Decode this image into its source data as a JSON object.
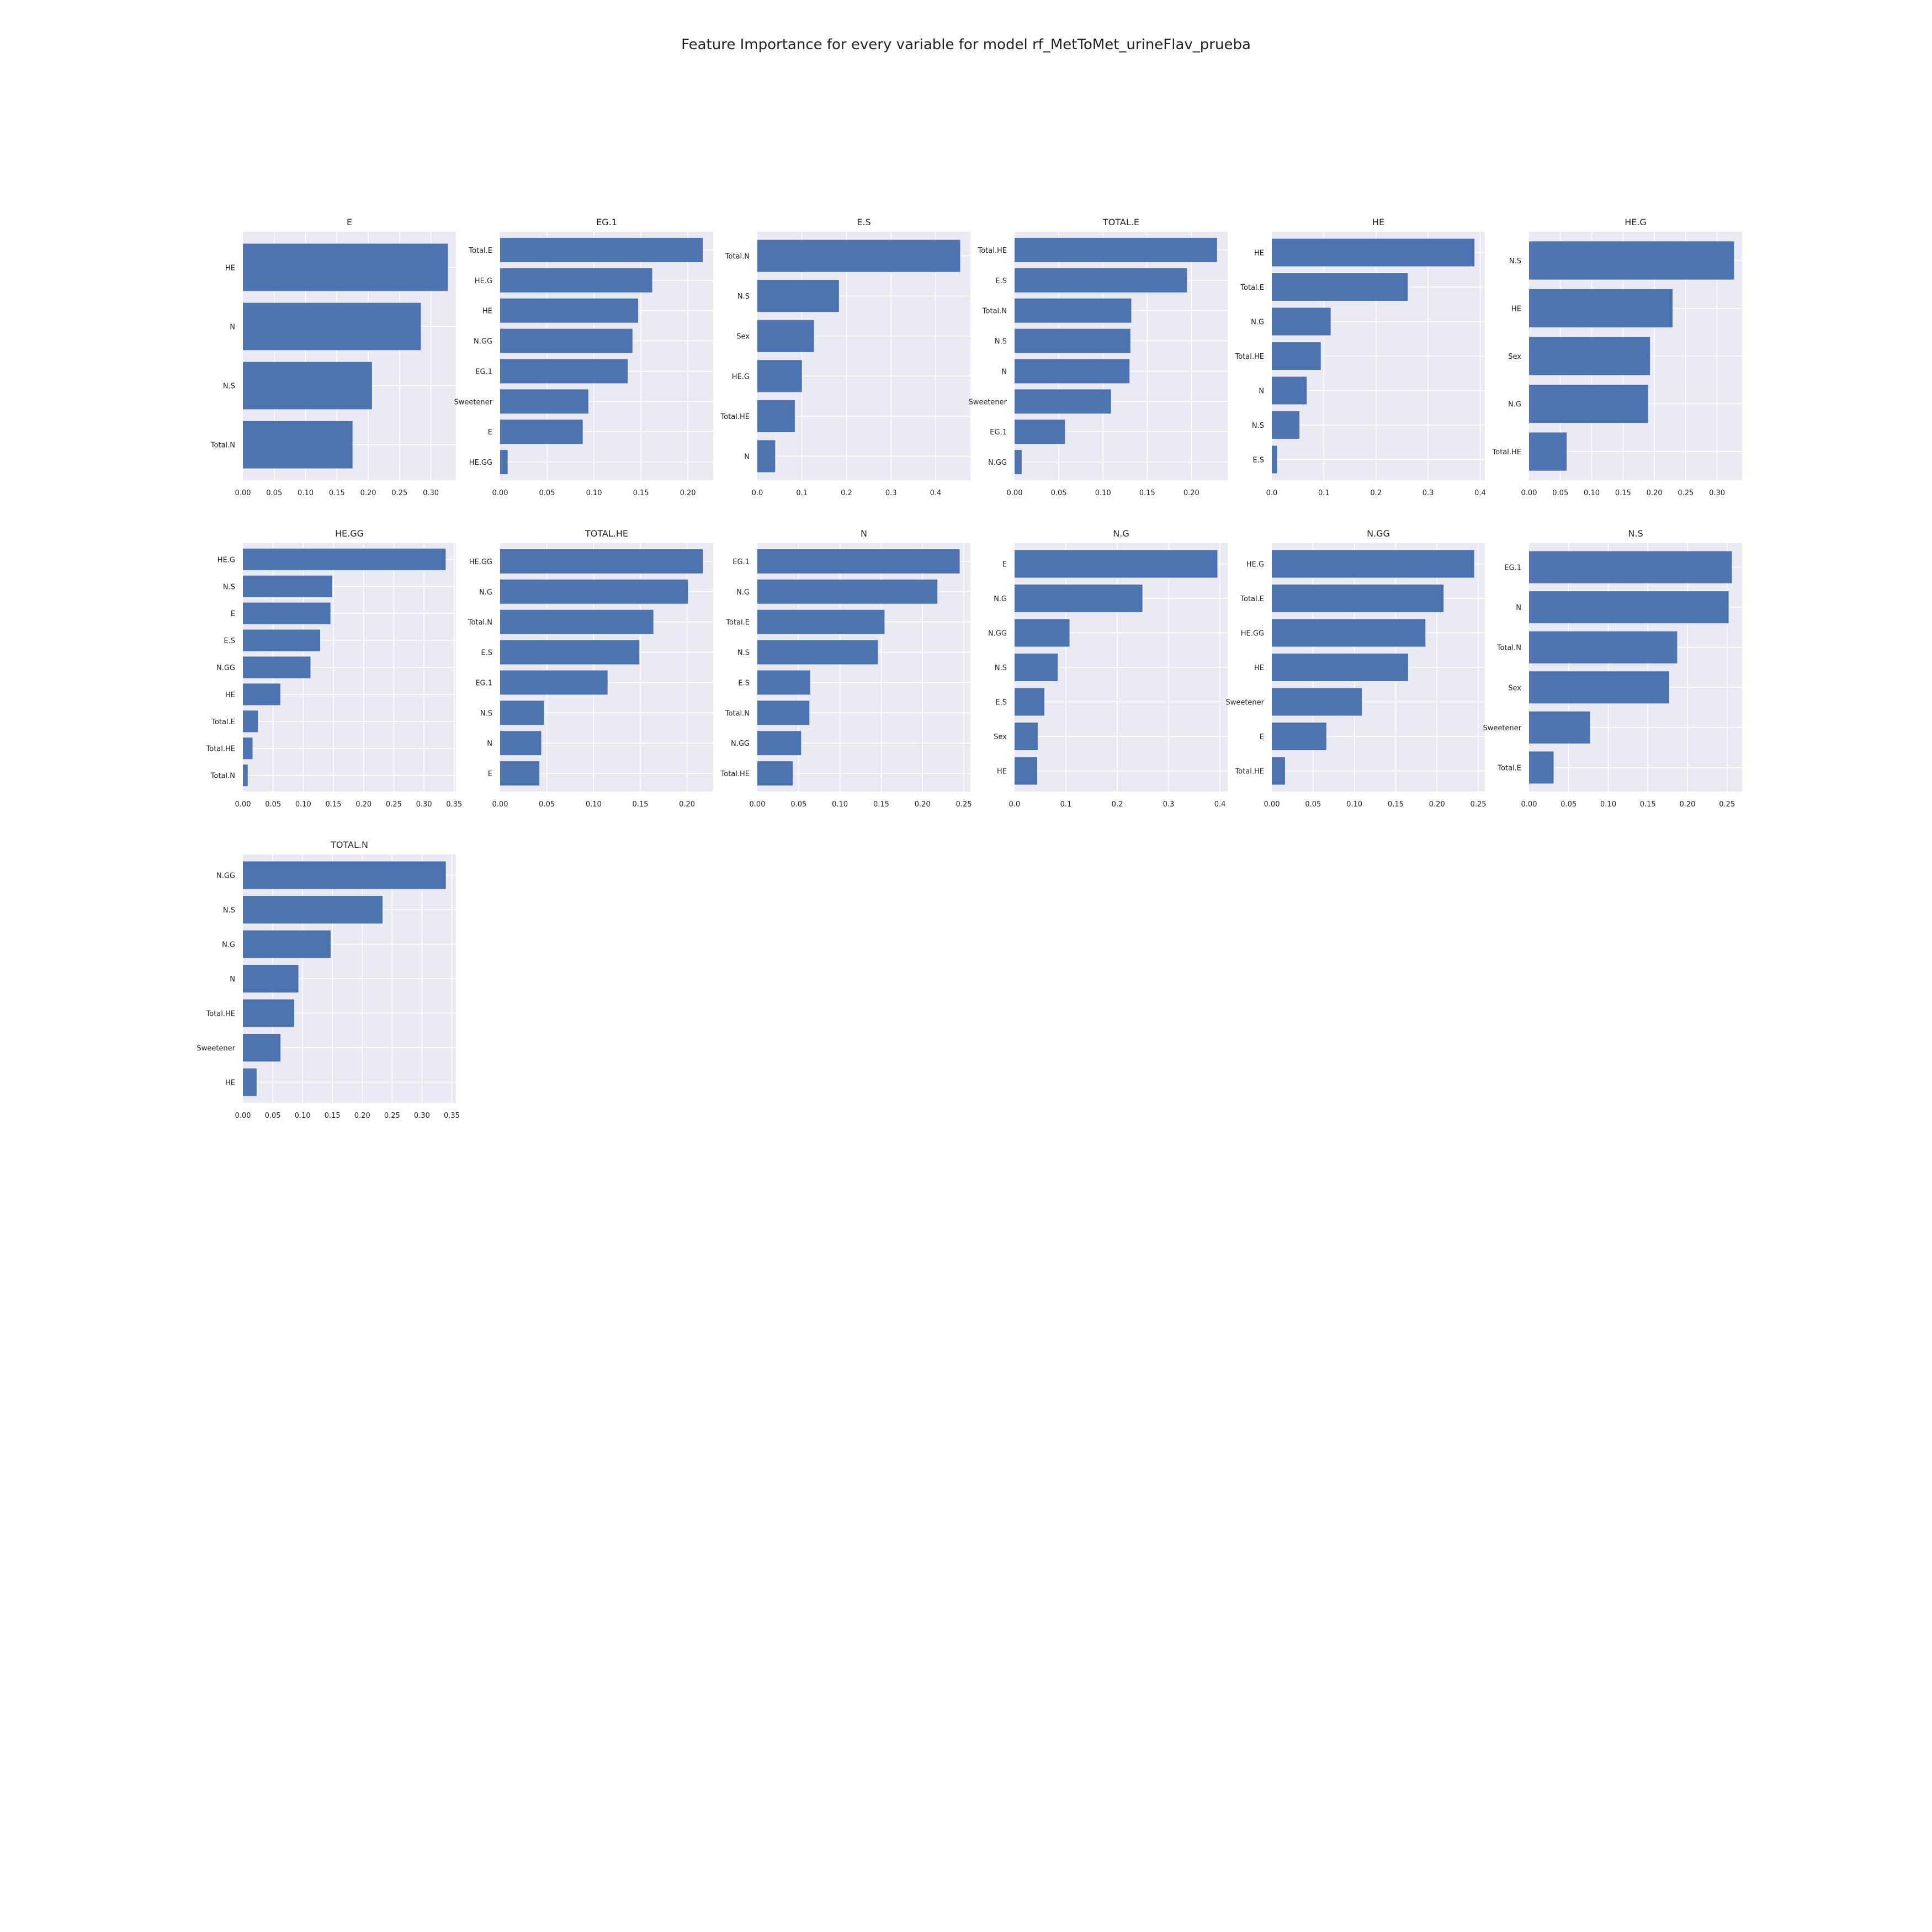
{
  "figure": {
    "title": "Feature Importance for every variable for model rf_MetToMet_urineFlav_prueba",
    "bar_color": "#4c72b0",
    "background_color": "#eaeaf2",
    "grid_color": "#ffffff"
  },
  "chart_data": [
    {
      "type": "bar",
      "orientation": "horizontal",
      "title": "E",
      "grid": true,
      "categories": [
        "HE",
        "N",
        "N.S",
        "Total.N"
      ],
      "values": [
        0.327,
        0.284,
        0.206,
        0.175
      ],
      "xlim": [
        0,
        0.34
      ],
      "xticks": [
        "0.00",
        "0.05",
        "0.10",
        "0.15",
        "0.20",
        "0.25",
        "0.30"
      ]
    },
    {
      "type": "bar",
      "orientation": "horizontal",
      "title": "EG.1",
      "grid": true,
      "categories": [
        "Total.E",
        "HE.G",
        "HE",
        "N.GG",
        "EG.1",
        "Sweetener",
        "E",
        "HE.GG"
      ],
      "values": [
        0.216,
        0.162,
        0.147,
        0.141,
        0.136,
        0.094,
        0.088,
        0.008
      ],
      "xlim": [
        0,
        0.227
      ],
      "xticks": [
        "0.00",
        "0.05",
        "0.10",
        "0.15",
        "0.20"
      ]
    },
    {
      "type": "bar",
      "orientation": "horizontal",
      "title": "E.S",
      "grid": true,
      "categories": [
        "Total.N",
        "N.S",
        "Sex",
        "HE.G",
        "Total.HE",
        "N"
      ],
      "values": [
        0.455,
        0.183,
        0.127,
        0.1,
        0.084,
        0.04
      ],
      "xlim": [
        0,
        0.478
      ],
      "xticks": [
        "0.0",
        "0.1",
        "0.2",
        "0.3",
        "0.4"
      ]
    },
    {
      "type": "bar",
      "orientation": "horizontal",
      "title": "TOTAL.E",
      "grid": true,
      "categories": [
        "Total.HE",
        "E.S",
        "Total.N",
        "N.S",
        "N",
        "Sweetener",
        "EG.1",
        "N.GG"
      ],
      "values": [
        0.229,
        0.195,
        0.132,
        0.131,
        0.13,
        0.109,
        0.057,
        0.008
      ],
      "xlim": [
        0,
        0.241
      ],
      "xticks": [
        "0.00",
        "0.05",
        "0.10",
        "0.15",
        "0.20"
      ]
    },
    {
      "type": "bar",
      "orientation": "horizontal",
      "title": "HE",
      "grid": true,
      "categories": [
        "HE",
        "Total.E",
        "N.G",
        "Total.HE",
        "N",
        "N.S",
        "E.S"
      ],
      "values": [
        0.389,
        0.261,
        0.113,
        0.094,
        0.067,
        0.053,
        0.01
      ],
      "xlim": [
        0,
        0.409
      ],
      "xticks": [
        "0.0",
        "0.1",
        "0.2",
        "0.3",
        "0.4"
      ]
    },
    {
      "type": "bar",
      "orientation": "horizontal",
      "title": "HE.G",
      "grid": true,
      "categories": [
        "N.S",
        "HE",
        "Sex",
        "N.G",
        "Total.HE"
      ],
      "values": [
        0.327,
        0.229,
        0.193,
        0.19,
        0.06
      ],
      "xlim": [
        0,
        0.34
      ],
      "xticks": [
        "0.00",
        "0.05",
        "0.10",
        "0.15",
        "0.20",
        "0.25",
        "0.30"
      ]
    },
    {
      "type": "bar",
      "orientation": "horizontal",
      "title": "HE.GG",
      "grid": true,
      "categories": [
        "HE.G",
        "N.S",
        "E",
        "E.S",
        "N.GG",
        "HE",
        "Total.E",
        "Total.HE",
        "Total.N"
      ],
      "values": [
        0.336,
        0.148,
        0.145,
        0.128,
        0.112,
        0.062,
        0.025,
        0.016,
        0.008
      ],
      "xlim": [
        0,
        0.353
      ],
      "xticks": [
        "0.00",
        "0.05",
        "0.10",
        "0.15",
        "0.20",
        "0.25",
        "0.30",
        "0.35"
      ]
    },
    {
      "type": "bar",
      "orientation": "horizontal",
      "title": "TOTAL.HE",
      "grid": true,
      "categories": [
        "HE.GG",
        "N.G",
        "Total.N",
        "E.S",
        "EG.1",
        "N.S",
        "N",
        "E"
      ],
      "values": [
        0.217,
        0.201,
        0.164,
        0.149,
        0.115,
        0.047,
        0.044,
        0.042
      ],
      "xlim": [
        0,
        0.228
      ],
      "xticks": [
        "0.00",
        "0.05",
        "0.10",
        "0.15",
        "0.20"
      ]
    },
    {
      "type": "bar",
      "orientation": "horizontal",
      "title": "N",
      "grid": true,
      "categories": [
        "EG.1",
        "N.G",
        "Total.E",
        "N.S",
        "E.S",
        "Total.N",
        "N.GG",
        "Total.HE"
      ],
      "values": [
        0.245,
        0.218,
        0.154,
        0.146,
        0.064,
        0.063,
        0.053,
        0.043
      ],
      "xlim": [
        0,
        0.258
      ],
      "xticks": [
        "0.00",
        "0.05",
        "0.10",
        "0.15",
        "0.20",
        "0.25"
      ]
    },
    {
      "type": "bar",
      "orientation": "horizontal",
      "title": "N.G",
      "grid": true,
      "categories": [
        "E",
        "N.G",
        "N.GG",
        "N.S",
        "E.S",
        "Sex",
        "HE"
      ],
      "values": [
        0.395,
        0.249,
        0.107,
        0.084,
        0.058,
        0.045,
        0.044
      ],
      "xlim": [
        0,
        0.415
      ],
      "xticks": [
        "0.0",
        "0.1",
        "0.2",
        "0.3",
        "0.4"
      ]
    },
    {
      "type": "bar",
      "orientation": "horizontal",
      "title": "N.GG",
      "grid": true,
      "categories": [
        "HE.G",
        "Total.E",
        "HE.GG",
        "HE",
        "Sweetener",
        "E",
        "Total.HE"
      ],
      "values": [
        0.245,
        0.208,
        0.186,
        0.165,
        0.109,
        0.066,
        0.016
      ],
      "xlim": [
        0,
        0.258
      ],
      "xticks": [
        "0.00",
        "0.05",
        "0.10",
        "0.15",
        "0.20",
        "0.25"
      ]
    },
    {
      "type": "bar",
      "orientation": "horizontal",
      "title": "N.S",
      "grid": true,
      "categories": [
        "EG.1",
        "N",
        "Total.N",
        "Sex",
        "Sweetener",
        "Total.E"
      ],
      "values": [
        0.256,
        0.252,
        0.187,
        0.177,
        0.077,
        0.031
      ],
      "xlim": [
        0,
        0.269
      ],
      "xticks": [
        "0.00",
        "0.05",
        "0.10",
        "0.15",
        "0.20",
        "0.25"
      ]
    },
    {
      "type": "bar",
      "orientation": "horizontal",
      "title": "TOTAL.N",
      "grid": true,
      "categories": [
        "N.GG",
        "N.S",
        "N.G",
        "N",
        "Total.HE",
        "Sweetener",
        "HE"
      ],
      "values": [
        0.34,
        0.234,
        0.147,
        0.093,
        0.086,
        0.063,
        0.023
      ],
      "xlim": [
        0,
        0.357
      ],
      "xticks": [
        "0.00",
        "0.05",
        "0.10",
        "0.15",
        "0.20",
        "0.25",
        "0.30",
        "0.35"
      ]
    }
  ]
}
